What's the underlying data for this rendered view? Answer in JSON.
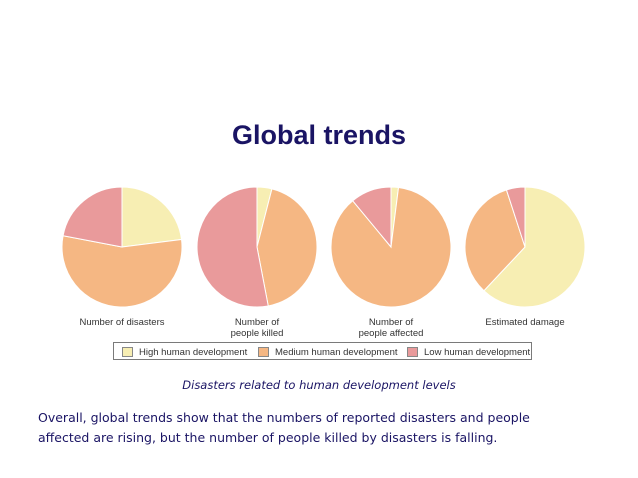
{
  "slide": {
    "title": "Global trends",
    "caption": "Disasters related to human development levels",
    "summary_line1": "Overall, global trends show that the numbers of reported disasters and people",
    "summary_line2": "affected are rising, but the number of people killed by disasters is falling."
  },
  "legend": {
    "items": [
      {
        "label": "High human development",
        "color": "#f7eeb3"
      },
      {
        "label": "Medium human development",
        "color": "#f5b783"
      },
      {
        "label": "Low human development",
        "color": "#e99a9b"
      }
    ]
  },
  "chart_data": {
    "type": "pie",
    "series_order": [
      "High human development",
      "Medium human development",
      "Low human development"
    ],
    "colors": [
      "#f7eeb3",
      "#f5b783",
      "#e99a9b"
    ],
    "pies": [
      {
        "label": "Number of disasters",
        "values": [
          23,
          55,
          22
        ]
      },
      {
        "label": "Number of\npeople killed",
        "values": [
          4,
          43,
          53
        ]
      },
      {
        "label": "Number of\npeople affected",
        "values": [
          2,
          87,
          11
        ]
      },
      {
        "label": "Estimated damage",
        "values": [
          62,
          33,
          5
        ]
      }
    ]
  }
}
